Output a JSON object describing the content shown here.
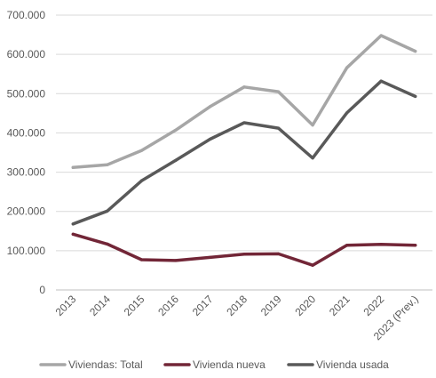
{
  "chart_data": {
    "type": "line",
    "title": "",
    "xlabel": "",
    "ylabel": "",
    "categories": [
      "2013",
      "2014",
      "2015",
      "2016",
      "2017",
      "2018",
      "2019",
      "2020",
      "2021",
      "2022",
      "2023 (Prev.)"
    ],
    "ylim": [
      0,
      700000
    ],
    "y_ticks": [
      {
        "value": 0,
        "label": "0"
      },
      {
        "value": 100000,
        "label": "100.000"
      },
      {
        "value": 200000,
        "label": "200.000"
      },
      {
        "value": 300000,
        "label": "300.000"
      },
      {
        "value": 400000,
        "label": "400.000"
      },
      {
        "value": 500000,
        "label": "500.000"
      },
      {
        "value": 600000,
        "label": "600.000"
      },
      {
        "value": 700000,
        "label": "700.000"
      }
    ],
    "grid": true,
    "legend_position": "bottom",
    "series": [
      {
        "name": "Viviendas: Total",
        "color": "#a6a6a6",
        "values": [
          312000,
          319000,
          355000,
          407000,
          467000,
          517000,
          505000,
          420000,
          566000,
          648000,
          608000
        ]
      },
      {
        "name": "Vivienda nueva",
        "color": "#722637",
        "values": [
          142000,
          117000,
          77000,
          75000,
          83000,
          91000,
          92000,
          63000,
          114000,
          116000,
          114000
        ]
      },
      {
        "name": "Vivienda usada",
        "color": "#595959",
        "values": [
          168000,
          201000,
          278000,
          330000,
          384000,
          426000,
          412000,
          336000,
          451000,
          532000,
          493000
        ]
      }
    ]
  }
}
